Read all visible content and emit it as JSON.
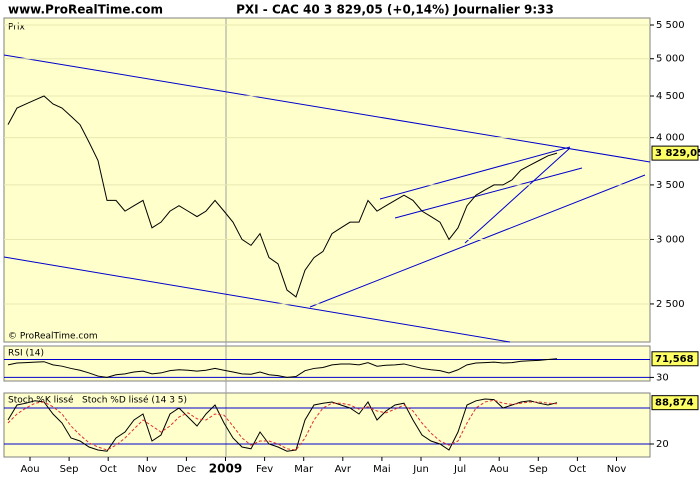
{
  "header": {
    "site": "www.ProRealTime.com",
    "title": "PXI - CAC 40   3 829,05 (+0,14%)   Journalier  9:33"
  },
  "chart_data": [
    {
      "type": "line",
      "name": "Prix",
      "copyright": "© ProRealTime.com",
      "log": true,
      "color": "#000000",
      "values": [
        4150,
        4350,
        4400,
        4450,
        4500,
        4400,
        4350,
        4250,
        4150,
        3950,
        3750,
        3350,
        3350,
        3250,
        3300,
        3350,
        3100,
        3150,
        3250,
        3300,
        3250,
        3200,
        3250,
        3350,
        3250,
        3150,
        3000,
        2950,
        3050,
        2850,
        2800,
        2600,
        2550,
        2750,
        2850,
        2900,
        3050,
        3100,
        3150,
        3150,
        3350,
        3250,
        3300,
        3350,
        3400,
        3350,
        3250,
        3200,
        3150,
        3000,
        3100,
        3300,
        3400,
        3450,
        3500,
        3500,
        3550,
        3650,
        3700,
        3750,
        3800,
        3829.05
      ],
      "last_label": "3 829,05",
      "ylim": [
        2245,
        5610
      ],
      "yticks": [
        {
          "value": 2500,
          "label": "2 500"
        },
        {
          "value": 3000,
          "label": "3 000"
        },
        {
          "value": 3500,
          "label": "3 500"
        },
        {
          "value": 4000,
          "label": "4 000"
        },
        {
          "value": 4500,
          "label": "4 500"
        },
        {
          "value": 5000,
          "label": "5 000"
        },
        {
          "value": 5500,
          "label": "5 500"
        }
      ]
    },
    {
      "type": "line",
      "name": "RSI (14)",
      "color": "#000000",
      "values": [
        58,
        62,
        63,
        64,
        65,
        58,
        55,
        50,
        46,
        40,
        33,
        30,
        36,
        38,
        42,
        44,
        38,
        40,
        45,
        47,
        46,
        44,
        46,
        50,
        46,
        42,
        38,
        37,
        42,
        36,
        34,
        30,
        32,
        45,
        50,
        52,
        58,
        60,
        60,
        58,
        63,
        55,
        57,
        58,
        60,
        55,
        50,
        47,
        45,
        40,
        47,
        58,
        62,
        63,
        64,
        62,
        63,
        66,
        67,
        68,
        70,
        71.568
      ],
      "last_label": "71,568",
      "ylim": [
        22,
        100
      ],
      "yticks": [
        30
      ],
      "levels": [
        30,
        70
      ]
    },
    {
      "type": "line",
      "ylim": [
        0,
        100
      ],
      "yticks": [
        20
      ],
      "levels": [
        20,
        80
      ],
      "last_label": "88,874",
      "series": [
        {
          "name": "Stoch %K lissé",
          "color": "#000000",
          "values": [
            60,
            85,
            88,
            92,
            90,
            70,
            55,
            30,
            25,
            15,
            10,
            8,
            30,
            40,
            60,
            70,
            25,
            35,
            70,
            80,
            65,
            50,
            70,
            85,
            55,
            30,
            15,
            12,
            40,
            20,
            15,
            8,
            10,
            60,
            85,
            88,
            90,
            85,
            80,
            70,
            90,
            60,
            75,
            85,
            88,
            60,
            35,
            25,
            20,
            10,
            40,
            85,
            92,
            95,
            94,
            80,
            85,
            90,
            92,
            88,
            85,
            88.874
          ]
        },
        {
          "name": "Stoch %D lissé (14 3 5)",
          "color": "#e03030",
          "values": [
            55,
            70,
            80,
            88,
            90,
            82,
            70,
            50,
            35,
            22,
            15,
            10,
            18,
            30,
            45,
            60,
            50,
            40,
            50,
            65,
            72,
            62,
            60,
            70,
            68,
            50,
            30,
            18,
            25,
            25,
            20,
            12,
            10,
            30,
            60,
            80,
            88,
            88,
            85,
            78,
            82,
            75,
            72,
            78,
            85,
            75,
            55,
            38,
            25,
            18,
            25,
            55,
            80,
            90,
            93,
            88,
            86,
            88,
            90,
            90,
            88,
            87
          ]
        }
      ],
      "x_labels": [
        "Aou",
        "Sep",
        "Oct",
        "Nov",
        "Dec",
        "2009",
        "Fev",
        "Mar",
        "Avr",
        "Mai",
        "Jun",
        "Jul",
        "Aou",
        "Sep",
        "Oct",
        "Nov"
      ]
    }
  ]
}
